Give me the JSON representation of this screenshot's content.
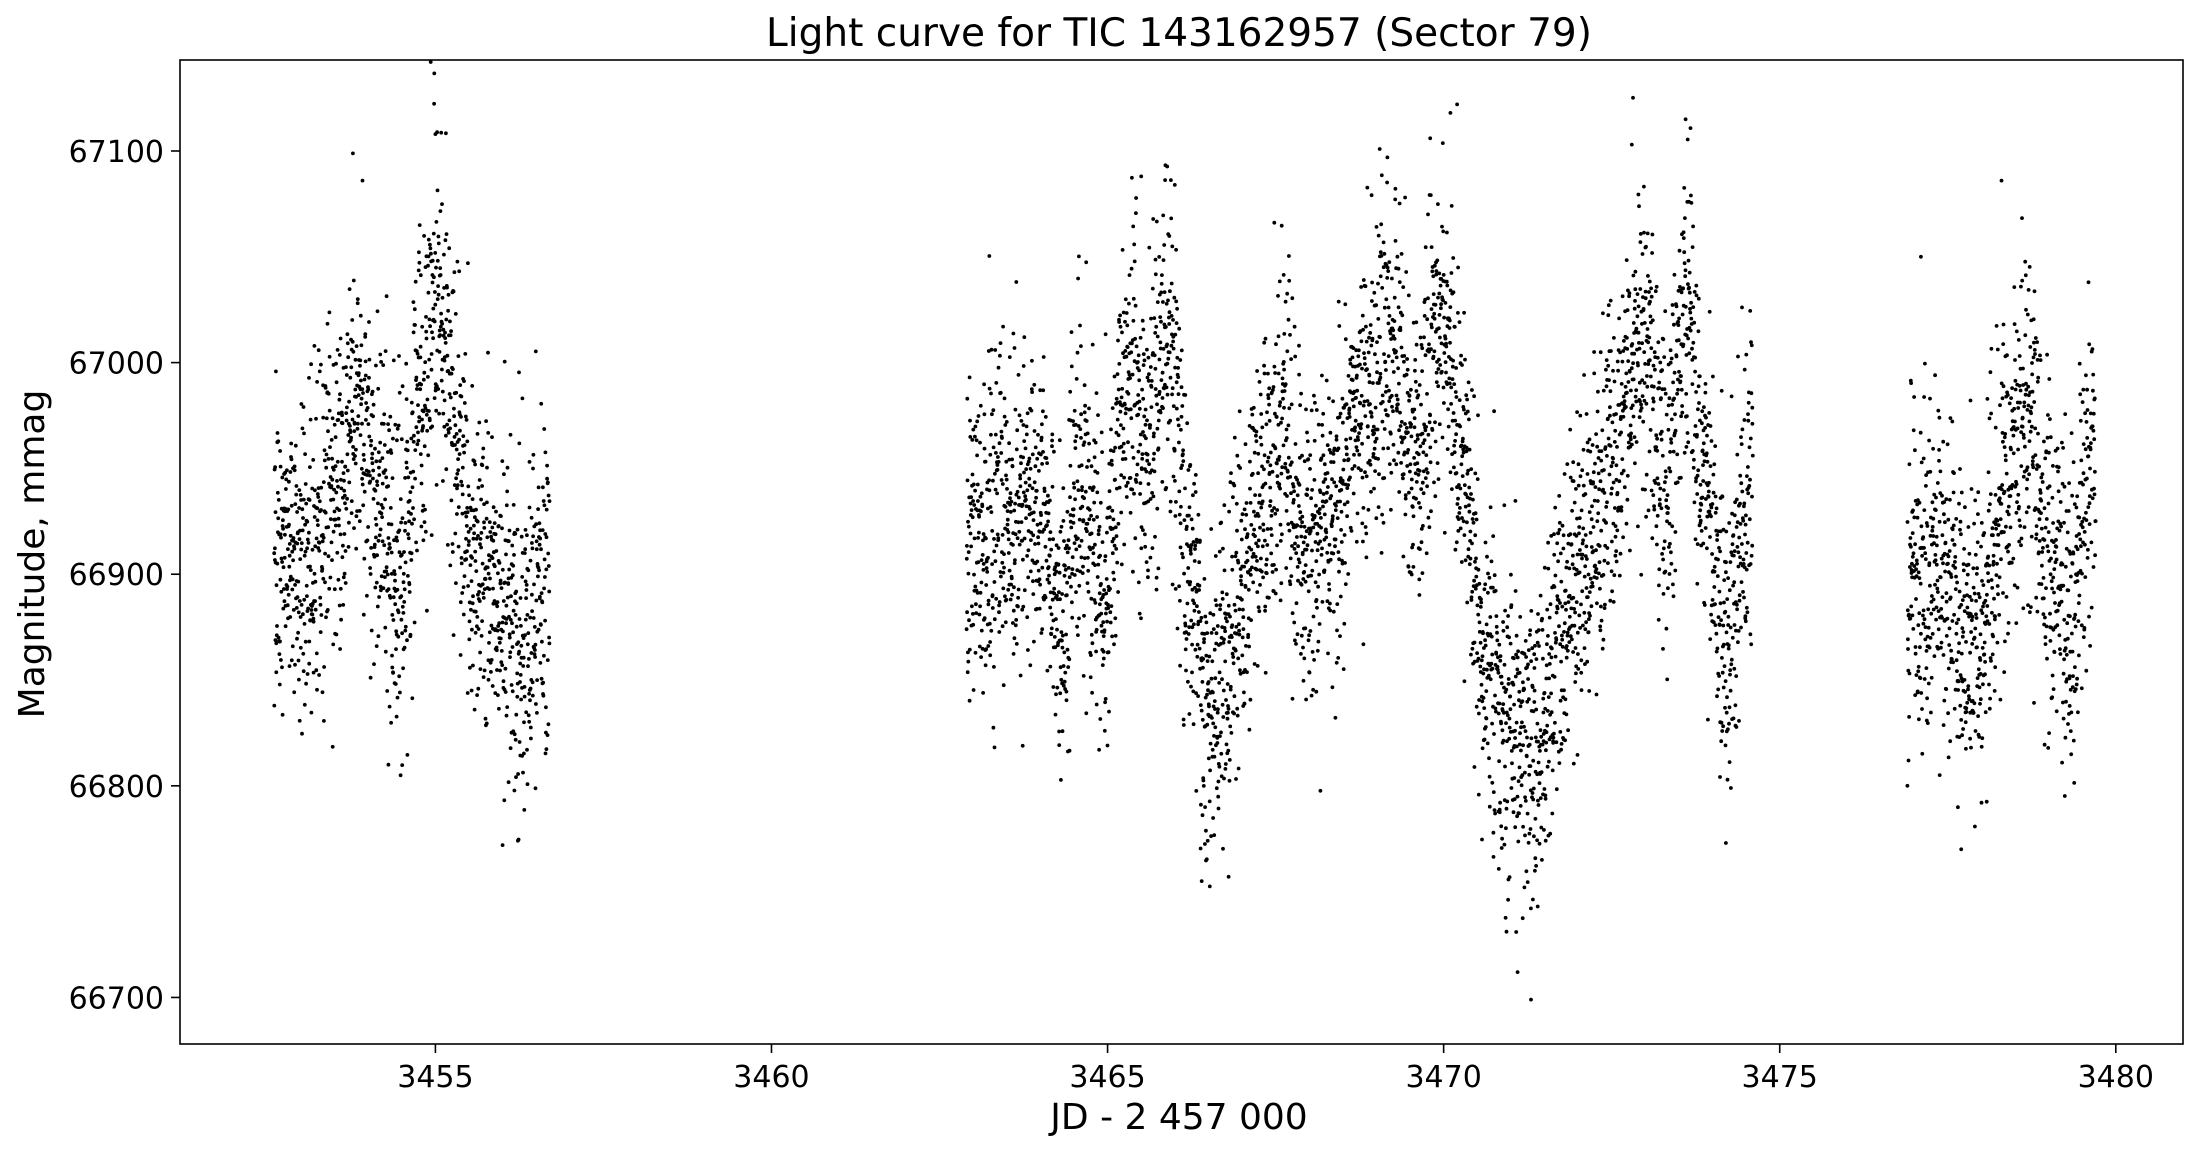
{
  "chart_data": {
    "type": "scatter",
    "title": "Light curve for TIC 143162957 (Sector 79)",
    "xlabel": "JD - 2 457 000",
    "ylabel": "Magnitude, mmag",
    "xlim": [
      3451.2,
      3481.0
    ],
    "ylim": [
      66678,
      67143
    ],
    "xticks": [
      3455,
      3460,
      3465,
      3470,
      3475,
      3480
    ],
    "yticks": [
      66700,
      66800,
      66900,
      67000,
      67100
    ],
    "xtick_labels": [
      "3455",
      "3460",
      "3465",
      "3470",
      "3475",
      "3480"
    ],
    "ytick_labels": [
      "66700",
      "66800",
      "66900",
      "67000",
      "67100"
    ],
    "grid": false,
    "marker_color": "#000000",
    "series": [
      {
        "segments": [
          {
            "x_range": [
              3452.6,
              3456.7
            ]
          },
          {
            "x_range": [
              3462.9,
              3474.6
            ]
          },
          {
            "x_range": [
              3476.9,
              3479.7
            ]
          }
        ],
        "trend_x": [
          3452.6,
          3453.0,
          3453.5,
          3453.8,
          3454.2,
          3454.5,
          3454.8,
          3455.0,
          3455.3,
          3455.6,
          3456.0,
          3456.3,
          3456.7,
          3462.9,
          3463.5,
          3464.0,
          3464.3,
          3464.6,
          3464.9,
          3465.3,
          3465.6,
          3465.9,
          3466.2,
          3466.5,
          3466.8,
          3467.2,
          3467.6,
          3468.0,
          3468.3,
          3468.7,
          3469.2,
          3469.6,
          3470.0,
          3470.3,
          3470.6,
          3471.0,
          3471.4,
          3471.8,
          3472.2,
          3472.6,
          3473.0,
          3473.3,
          3473.6,
          3473.9,
          3474.2,
          3474.6,
          3476.9,
          3477.3,
          3477.7,
          3478.0,
          3478.4,
          3478.7,
          3479.0,
          3479.3,
          3479.7
        ],
        "trend_y": [
          66910,
          66905,
          66935,
          66975,
          66930,
          66895,
          66990,
          67040,
          66960,
          66905,
          66885,
          66870,
          66900,
          66910,
          66930,
          66925,
          66880,
          66950,
          66890,
          66990,
          66960,
          67010,
          66900,
          66840,
          66860,
          66920,
          66960,
          66910,
          66930,
          66970,
          67000,
          66960,
          67020,
          66950,
          66860,
          66830,
          66820,
          66880,
          66920,
          66960,
          67020,
          66940,
          67030,
          66940,
          66870,
          66950,
          66900,
          66910,
          66870,
          66880,
          66940,
          66990,
          66900,
          66880,
          66960
        ],
        "spread": 38,
        "points_per_day": 340,
        "outliers": [
          {
            "x": 3455.0,
            "y": 67108
          },
          {
            "x": 3456.0,
            "y": 66772
          },
          {
            "x": 3454.3,
            "y": 66810
          },
          {
            "x": 3465.5,
            "y": 67088
          },
          {
            "x": 3466.0,
            "y": 67084
          },
          {
            "x": 3466.4,
            "y": 66755
          },
          {
            "x": 3466.8,
            "y": 66757
          },
          {
            "x": 3469.8,
            "y": 67106
          },
          {
            "x": 3470.1,
            "y": 67118
          },
          {
            "x": 3470.2,
            "y": 67122
          },
          {
            "x": 3471.1,
            "y": 66712
          },
          {
            "x": 3471.3,
            "y": 66699
          },
          {
            "x": 3471.4,
            "y": 66743
          },
          {
            "x": 3472.8,
            "y": 67103
          },
          {
            "x": 3473.6,
            "y": 67115
          },
          {
            "x": 3474.2,
            "y": 66773
          },
          {
            "x": 3477.7,
            "y": 66770
          },
          {
            "x": 3478.3,
            "y": 67086
          },
          {
            "x": 3476.9,
            "y": 66800
          },
          {
            "x": 3477.1,
            "y": 67050
          }
        ]
      }
    ]
  }
}
